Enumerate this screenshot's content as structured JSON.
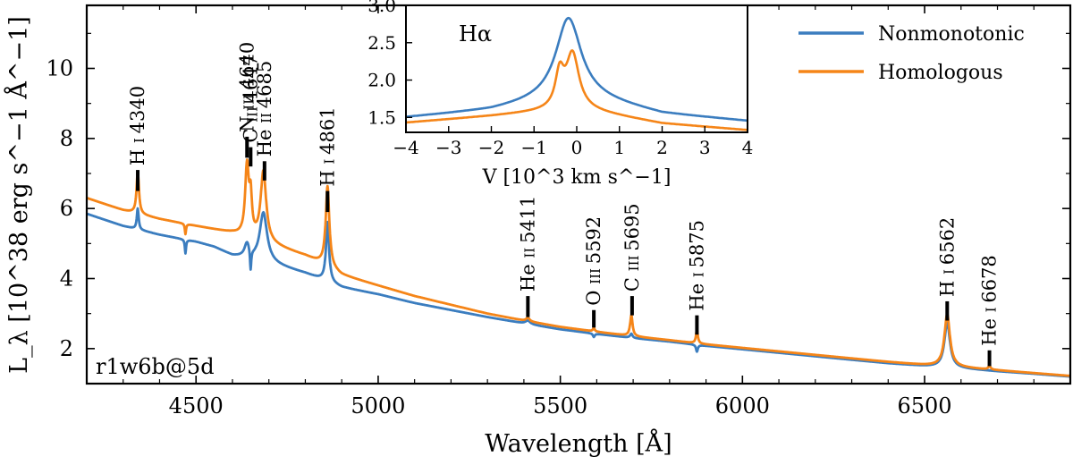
{
  "chart_data": {
    "type": "line",
    "xlabel": "Wavelength [Å]",
    "ylabel": "L_λ [10^38 erg s^−1 Å^−1]",
    "xlim": [
      4200,
      6900
    ],
    "ylim": [
      1.0,
      11.8
    ],
    "x_ticks": [
      4500,
      5000,
      5500,
      6000,
      6500
    ],
    "y_ticks": [
      2,
      4,
      6,
      8,
      10
    ],
    "panel_label": "r1w6b@5d",
    "legend_position": "top-right",
    "series": [
      {
        "name": "Nonmonotonic",
        "color": "#3b7dbf",
        "continuum": [
          [
            4200,
            5.85
          ],
          [
            4300,
            5.5
          ],
          [
            4400,
            5.25
          ],
          [
            4500,
            5.05
          ],
          [
            4550,
            4.9
          ],
          [
            4600,
            4.65
          ],
          [
            4700,
            4.45
          ],
          [
            4800,
            4.15
          ],
          [
            4850,
            3.95
          ],
          [
            4900,
            3.75
          ],
          [
            5000,
            3.55
          ],
          [
            5100,
            3.3
          ],
          [
            5200,
            3.1
          ],
          [
            5300,
            2.9
          ],
          [
            5400,
            2.72
          ],
          [
            5500,
            2.55
          ],
          [
            5600,
            2.42
          ],
          [
            5700,
            2.3
          ],
          [
            5800,
            2.2
          ],
          [
            5900,
            2.08
          ],
          [
            6000,
            1.98
          ],
          [
            6100,
            1.88
          ],
          [
            6200,
            1.78
          ],
          [
            6300,
            1.68
          ],
          [
            6400,
            1.58
          ],
          [
            6500,
            1.5
          ],
          [
            6600,
            1.43
          ],
          [
            6700,
            1.35
          ],
          [
            6800,
            1.28
          ],
          [
            6900,
            1.2
          ]
        ],
        "lines": [
          {
            "center": 4340,
            "amp": 0.6,
            "width": 3
          },
          {
            "center": 4471,
            "amp": -0.4,
            "width": 2
          },
          {
            "center": 4640,
            "amp": 0.4,
            "width": 8
          },
          {
            "center": 4650,
            "amp": -0.6,
            "width": 2
          },
          {
            "center": 4685,
            "amp": 1.4,
            "width": 12
          },
          {
            "center": 4861,
            "amp": 1.7,
            "width": 5
          },
          {
            "center": 5411,
            "amp": 0.1,
            "width": 8
          },
          {
            "center": 5592,
            "amp": -0.1,
            "width": 3
          },
          {
            "center": 5695,
            "amp": 0.12,
            "width": 4
          },
          {
            "center": 5875,
            "amp": -0.2,
            "width": 3
          },
          {
            "center": 6562,
            "amp": 1.3,
            "width": 9
          }
        ]
      },
      {
        "name": "Homologous",
        "color": "#f58518",
        "continuum": [
          [
            4200,
            6.3
          ],
          [
            4300,
            5.95
          ],
          [
            4400,
            5.7
          ],
          [
            4500,
            5.5
          ],
          [
            4550,
            5.4
          ],
          [
            4600,
            5.3
          ],
          [
            4700,
            5.0
          ],
          [
            4800,
            4.65
          ],
          [
            4850,
            4.4
          ],
          [
            4900,
            4.1
          ],
          [
            5000,
            3.8
          ],
          [
            5100,
            3.5
          ],
          [
            5200,
            3.25
          ],
          [
            5300,
            3.0
          ],
          [
            5400,
            2.8
          ],
          [
            5500,
            2.62
          ],
          [
            5600,
            2.48
          ],
          [
            5700,
            2.35
          ],
          [
            5800,
            2.24
          ],
          [
            5900,
            2.12
          ],
          [
            6000,
            2.02
          ],
          [
            6100,
            1.92
          ],
          [
            6200,
            1.82
          ],
          [
            6300,
            1.72
          ],
          [
            6400,
            1.62
          ],
          [
            6500,
            1.53
          ],
          [
            6600,
            1.46
          ],
          [
            6700,
            1.38
          ],
          [
            6800,
            1.3
          ],
          [
            6900,
            1.22
          ]
        ],
        "lines": [
          {
            "center": 4340,
            "amp": 1.2,
            "width": 4
          },
          {
            "center": 4471,
            "amp": -0.3,
            "width": 2
          },
          {
            "center": 4640,
            "amp": 2.0,
            "width": 6
          },
          {
            "center": 4650,
            "amp": 1.0,
            "width": 4
          },
          {
            "center": 4685,
            "amp": 2.0,
            "width": 9
          },
          {
            "center": 4861,
            "amp": 2.3,
            "width": 6
          },
          {
            "center": 5411,
            "amp": 0.1,
            "width": 6
          },
          {
            "center": 5592,
            "amp": 0.1,
            "width": 3
          },
          {
            "center": 5695,
            "amp": 0.6,
            "width": 4
          },
          {
            "center": 5875,
            "amp": 0.4,
            "width": 3
          },
          {
            "center": 6562,
            "amp": 1.5,
            "width": 9
          },
          {
            "center": 6678,
            "amp": 0.1,
            "width": 4
          }
        ]
      }
    ],
    "line_ids": [
      {
        "parts": [
          "H",
          "I",
          "4340"
        ],
        "wavelength": 4340,
        "tick_top": 7.1,
        "tick_bottom": 6.5
      },
      {
        "parts": [
          "N",
          "III",
          "4640"
        ],
        "wavelength": 4640,
        "tick_top": 8.05,
        "tick_bottom": 7.45
      },
      {
        "parts": [
          "C",
          "III",
          "4647"
        ],
        "wavelength": 4650,
        "tick_top": 7.75,
        "tick_bottom": 7.2
      },
      {
        "parts": [
          "He",
          "II",
          "4685"
        ],
        "wavelength": 4688,
        "tick_top": 7.35,
        "tick_bottom": 6.8
      },
      {
        "parts": [
          "H",
          "I",
          "4861"
        ],
        "wavelength": 4861,
        "tick_top": 6.5,
        "tick_bottom": 5.9
      },
      {
        "parts": [
          "He",
          "II",
          "5411"
        ],
        "wavelength": 5411,
        "tick_top": 3.5,
        "tick_bottom": 2.9
      },
      {
        "parts": [
          "O",
          "III",
          "5592"
        ],
        "wavelength": 5592,
        "tick_top": 3.1,
        "tick_bottom": 2.6
      },
      {
        "parts": [
          "C",
          "III",
          "5695"
        ],
        "wavelength": 5697,
        "tick_top": 3.5,
        "tick_bottom": 2.95
      },
      {
        "parts": [
          "He",
          "I",
          "5875"
        ],
        "wavelength": 5875,
        "tick_top": 2.95,
        "tick_bottom": 2.4
      },
      {
        "parts": [
          "H",
          "I",
          "6562"
        ],
        "wavelength": 6562,
        "tick_top": 3.35,
        "tick_bottom": 2.8
      },
      {
        "parts": [
          "He",
          "I",
          "6678"
        ],
        "wavelength": 6678,
        "tick_top": 1.95,
        "tick_bottom": 1.5
      }
    ],
    "inset": {
      "title": "Hα",
      "xlabel": "V [10^3 km s^−1]",
      "xlim": [
        -4,
        4
      ],
      "ylim": [
        1.3,
        3.0
      ],
      "x_ticks": [
        -4,
        -3,
        -2,
        -1,
        0,
        1,
        2,
        3,
        4
      ],
      "y_ticks": [
        1.5,
        2.0,
        2.5,
        3.0
      ],
      "series": [
        {
          "name": "Nonmonotonic",
          "color": "#3b7dbf",
          "base": [
            [
              -4,
              1.5
            ],
            [
              -2,
              1.6
            ],
            [
              0,
              1.8
            ],
            [
              2,
              1.55
            ],
            [
              4,
              1.45
            ]
          ],
          "peaks": [
            {
              "center": -0.2,
              "amp": 1.05,
              "width": 0.35
            }
          ]
        },
        {
          "name": "Homologous",
          "color": "#f58518",
          "base": [
            [
              -4,
              1.43
            ],
            [
              -2,
              1.52
            ],
            [
              0,
              1.62
            ],
            [
              2,
              1.42
            ],
            [
              4,
              1.33
            ]
          ],
          "peaks": [
            {
              "center": -0.4,
              "amp": 0.45,
              "width": 0.12
            },
            {
              "center": -0.1,
              "amp": 0.72,
              "width": 0.18
            }
          ]
        }
      ]
    }
  }
}
